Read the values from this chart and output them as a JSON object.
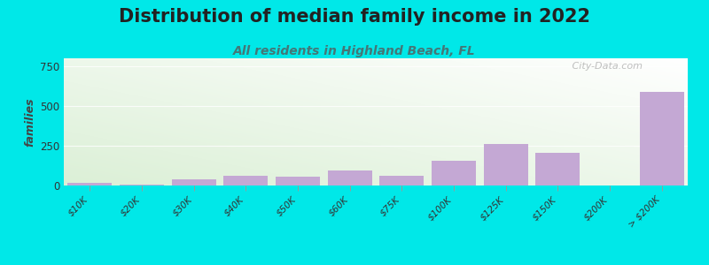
{
  "title": "Distribution of median family income in 2022",
  "subtitle": "All residents in Highland Beach, FL",
  "ylabel": "families",
  "categories": [
    "$10K",
    "$20K",
    "$30K",
    "$40K",
    "$50K",
    "$60K",
    "$75K",
    "$100K",
    "$125K",
    "$150K",
    "$200K",
    "> $200K"
  ],
  "values": [
    18,
    5,
    40,
    60,
    55,
    95,
    60,
    155,
    260,
    205,
    0,
    590
  ],
  "bar_color": "#c4a8d4",
  "background_color": "#00e8e8",
  "ylim": [
    0,
    800
  ],
  "yticks": [
    0,
    250,
    500,
    750
  ],
  "watermark": "   City-Data.com",
  "title_fontsize": 15,
  "subtitle_fontsize": 10,
  "ylabel_fontsize": 9,
  "title_color": "#222222",
  "subtitle_color": "#447777"
}
